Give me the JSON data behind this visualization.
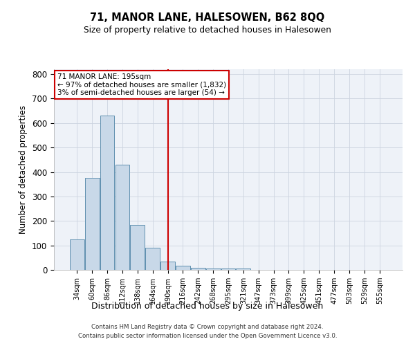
{
  "title": "71, MANOR LANE, HALESOWEN, B62 8QQ",
  "subtitle": "Size of property relative to detached houses in Halesowen",
  "xlabel": "Distribution of detached houses by size in Halesowen",
  "ylabel": "Number of detached properties",
  "categories": [
    "34sqm",
    "60sqm",
    "86sqm",
    "112sqm",
    "138sqm",
    "164sqm",
    "190sqm",
    "216sqm",
    "242sqm",
    "268sqm",
    "295sqm",
    "321sqm",
    "347sqm",
    "373sqm",
    "399sqm",
    "425sqm",
    "451sqm",
    "477sqm",
    "503sqm",
    "529sqm",
    "555sqm"
  ],
  "values": [
    125,
    375,
    630,
    430,
    185,
    90,
    35,
    18,
    8,
    6,
    6,
    6,
    1,
    0,
    0,
    0,
    0,
    0,
    0,
    0,
    0
  ],
  "bar_color": "#c8d8e8",
  "bar_edge_color": "#6090b0",
  "property_label": "71 MANOR LANE: 195sqm",
  "annotation_line1": "← 97% of detached houses are smaller (1,832)",
  "annotation_line2": "3% of semi-detached houses are larger (54) →",
  "vline_color": "#cc0000",
  "annotation_box_color": "#cc0000",
  "ylim": [
    0,
    820
  ],
  "yticks": [
    0,
    100,
    200,
    300,
    400,
    500,
    600,
    700,
    800
  ],
  "grid_color": "#ccd4e0",
  "bg_color": "#eef2f8",
  "footer_line1": "Contains HM Land Registry data © Crown copyright and database right 2024.",
  "footer_line2": "Contains public sector information licensed under the Open Government Licence v3.0."
}
